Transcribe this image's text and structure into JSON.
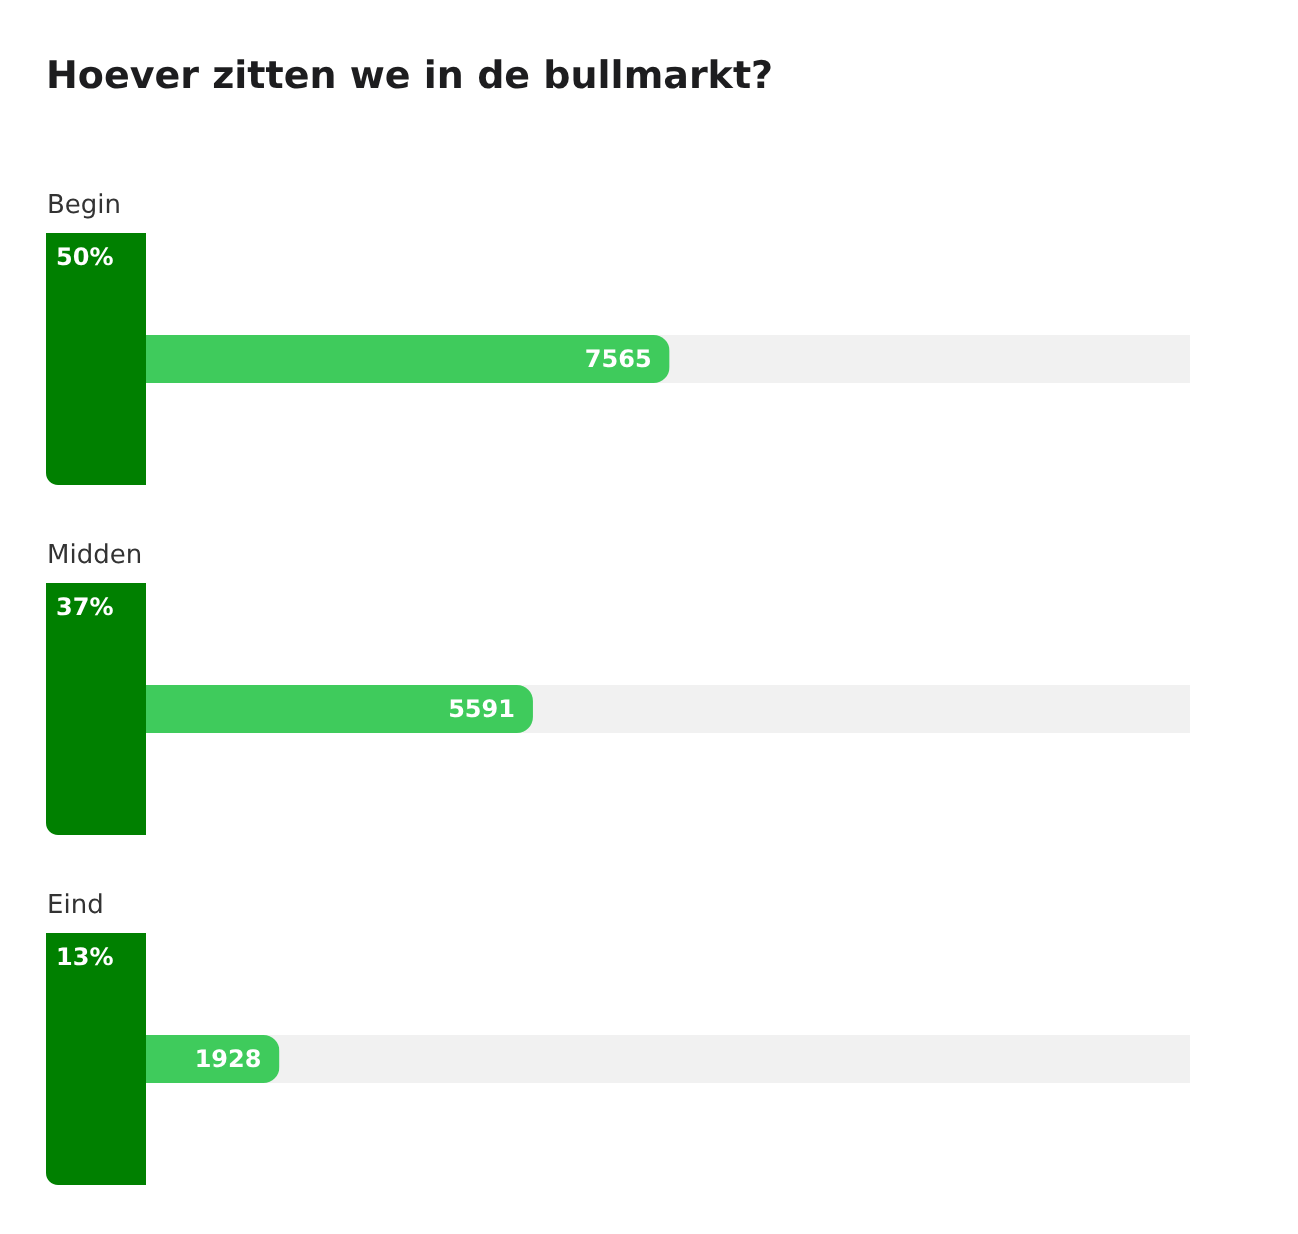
{
  "chart_data": {
    "type": "bar",
    "orientation": "horizontal",
    "title": "Hoever zitten we in de bullmarkt?",
    "categories": [
      "Begin",
      "Midden",
      "Eind"
    ],
    "values": [
      7565,
      5591,
      1928
    ],
    "color": "#3fcb5c",
    "xlim": [
      0,
      15084
    ],
    "data_labels": true,
    "annotations": [
      "50%",
      "37%",
      "13%"
    ]
  }
}
